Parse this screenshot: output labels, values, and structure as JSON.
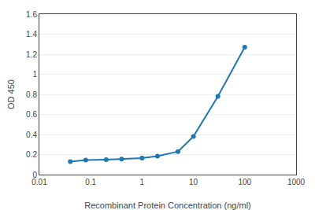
{
  "chart_data": {
    "type": "line",
    "x": [
      0.04,
      0.08,
      0.2,
      0.4,
      1.0,
      2.0,
      5.0,
      10.0,
      30.0,
      100.0
    ],
    "values": [
      0.13,
      0.145,
      0.15,
      0.155,
      0.165,
      0.185,
      0.23,
      0.38,
      0.78,
      1.27
    ],
    "xlabel": "Recombinant Protein Concentration (ng/ml)",
    "ylabel": "OD 450",
    "log": "x",
    "xlim": [
      0.01,
      1000
    ],
    "ylim": [
      0,
      1.6
    ],
    "xticks": [
      0.01,
      0.1,
      1,
      10,
      100,
      1000
    ],
    "yticks": [
      0,
      0.2,
      0.4,
      0.6,
      0.8,
      1,
      1.2,
      1.4,
      1.6
    ],
    "grid": "y",
    "marker": "circle"
  }
}
